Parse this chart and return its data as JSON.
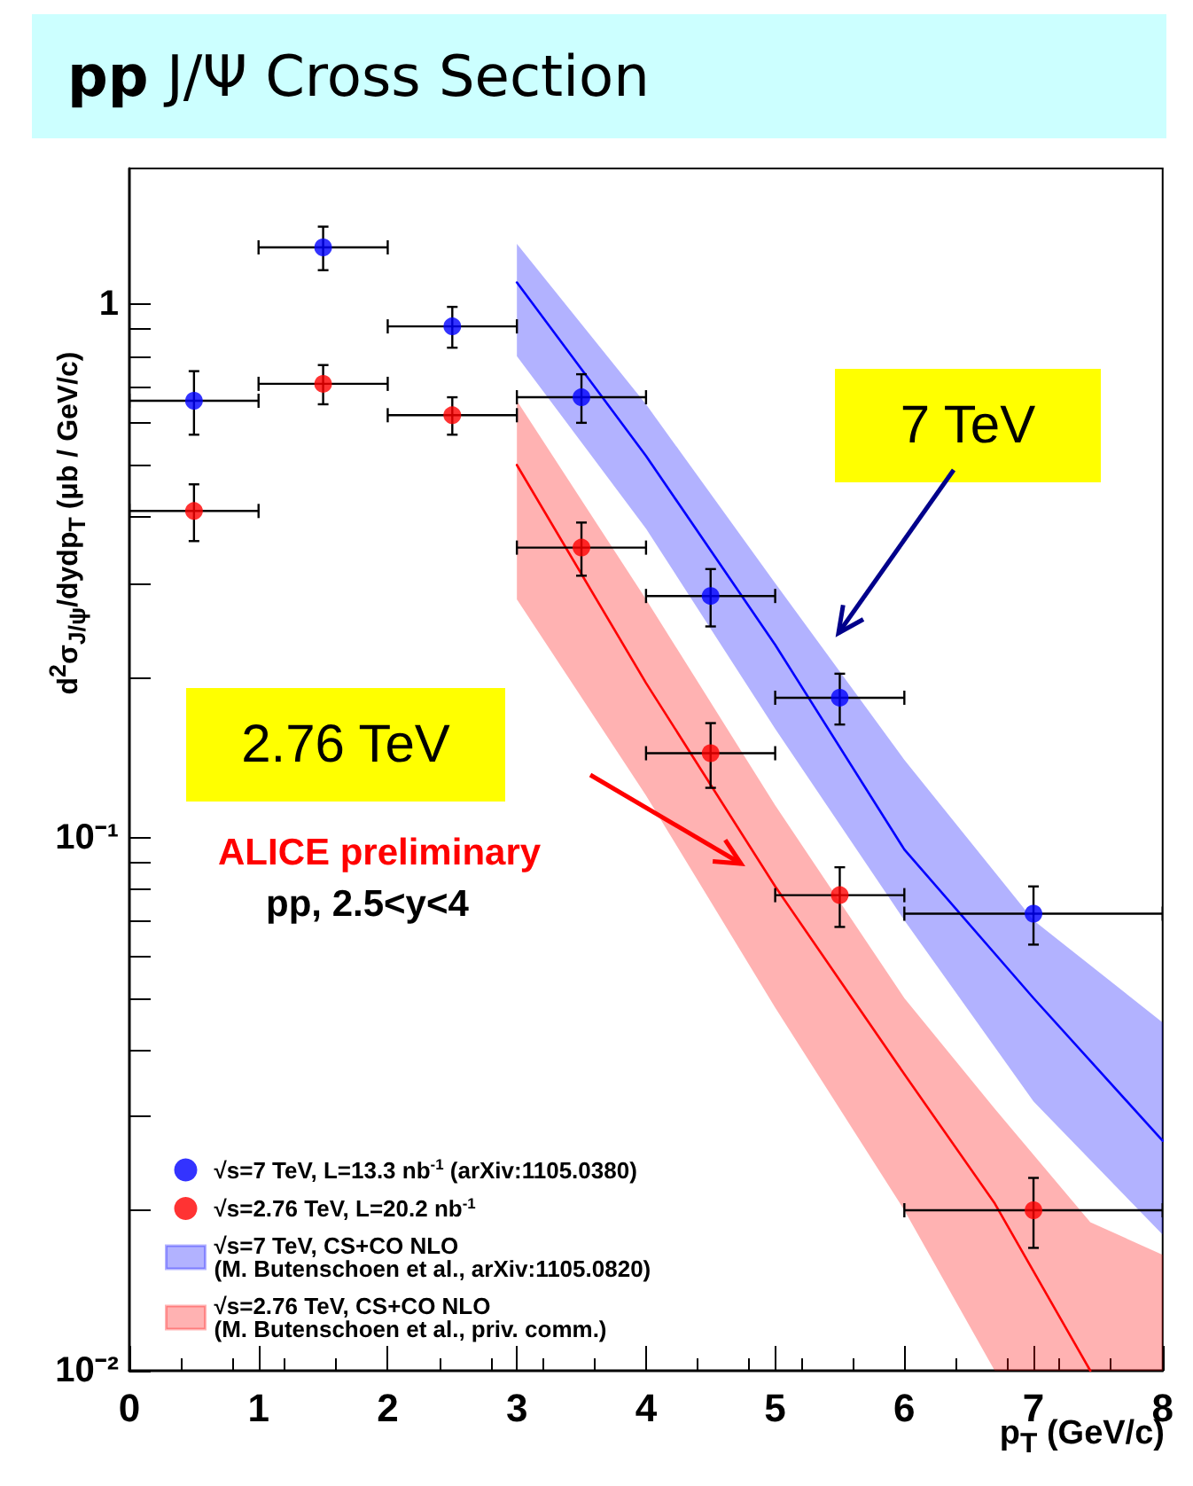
{
  "chart_data": {
    "type": "scatter",
    "title": "pp J/Ψ Cross Section",
    "xlabel": "p$_{T}$ (GeV/c)",
    "ylabel": "d$^{2}$σ$_{J/ψ}$/dydp$_{T}$ (μb / GeV/c)",
    "xlim": [
      0,
      8
    ],
    "xticks": [
      0,
      1,
      2,
      3,
      4,
      5,
      6,
      7,
      8
    ],
    "ylim": [
      0.01,
      1.8
    ],
    "yticks": [
      {
        "value": 0.01,
        "label": "10⁻²"
      },
      {
        "value": 0.02,
        "label": null
      },
      {
        "value": 0.03,
        "label": null
      },
      {
        "value": 0.04,
        "label": null
      },
      {
        "value": 0.05,
        "label": null
      },
      {
        "value": 0.06,
        "label": null
      },
      {
        "value": 0.07,
        "label": null
      },
      {
        "value": 0.08,
        "label": null
      },
      {
        "value": 0.09,
        "label": null
      },
      {
        "value": 0.1,
        "label": "10⁻¹"
      },
      {
        "value": 0.2,
        "label": null
      },
      {
        "value": 0.3,
        "label": null
      },
      {
        "value": 0.4,
        "label": null
      },
      {
        "value": 0.5,
        "label": null
      },
      {
        "value": 0.6,
        "label": null
      },
      {
        "value": 0.7,
        "label": null
      },
      {
        "value": 0.8,
        "label": null
      },
      {
        "value": 0.9,
        "label": null
      },
      {
        "value": 1,
        "label": "1"
      }
    ],
    "log": "y",
    "grid": false,
    "legend": "bottom left",
    "series": [
      {
        "name": "√s=7 TeV, L=13.3 nb$^{-1}$ (arXiv:1105.0380)",
        "type": "scatter",
        "marker": "circle",
        "color": "#0000ff",
        "x": [
          0.5,
          1.5,
          2.5,
          3.5,
          4.5,
          5.5,
          7
        ],
        "values": [
          0.66,
          1.28,
          0.91,
          0.67,
          0.284,
          0.183,
          0.072
        ],
        "errors": [
          0.09,
          0.12,
          0.08,
          0.07,
          0.035,
          0.02,
          0.009
        ],
        "xerrors": [
          0.5,
          0.5,
          0.5,
          0.5,
          0.5,
          0.5,
          1
        ]
      },
      {
        "name": "√s=2.76 TeV, L=20.2 nb$^{-1}$",
        "type": "scatter",
        "marker": "circle",
        "color": "#ff0000",
        "x": [
          0.5,
          1.5,
          2.5,
          3.5,
          4.5,
          5.5,
          7
        ],
        "values": [
          0.41,
          0.71,
          0.62,
          0.35,
          0.144,
          0.078,
          0.02
        ],
        "errors": [
          0.05,
          0.06,
          0.05,
          0.04,
          0.02,
          0.01,
          0.003
        ],
        "xerrors": [
          0.5,
          0.5,
          0.5,
          0.5,
          0.5,
          0.5,
          1
        ]
      },
      {
        "name": "√s=7 TeV, CS+CO NLO\n(M. Butenschoen et al., arXiv:1105.0820)",
        "type": "line",
        "marker": "none",
        "color": "#0000ff",
        "x": [
          3,
          4,
          5,
          6,
          7,
          8
        ],
        "values": [
          1.1,
          0.52,
          0.23,
          0.095,
          0.05,
          0.027
        ],
        "lower": [
          0.8,
          0.38,
          0.16,
          0.07,
          0.032,
          0.018
        ],
        "upper": [
          1.3,
          0.65,
          0.3,
          0.14,
          0.07,
          0.045
        ]
      },
      {
        "name": "√s=2.76 TeV, CS+CO NLO\n(M. Butenschoen et al., priv. comm.)",
        "type": "line",
        "marker": "none",
        "color": "#ff0000",
        "x": [
          3,
          4,
          5,
          6,
          6.7,
          7.44,
          8
        ],
        "values": [
          0.5,
          0.195,
          0.081,
          0.036,
          0.0206,
          0.01,
          null
        ],
        "lower": [
          0.28,
          0.12,
          0.048,
          0.02,
          0.01,
          0.01,
          0.01
        ],
        "upper": [
          0.66,
          0.28,
          0.115,
          0.05,
          0.031,
          0.019,
          0.0165
        ]
      }
    ],
    "annotations": [
      "7 TeV",
      "2.76 TeV",
      "ALICE preliminary",
      "pp, 2.5<y<4"
    ]
  }
}
